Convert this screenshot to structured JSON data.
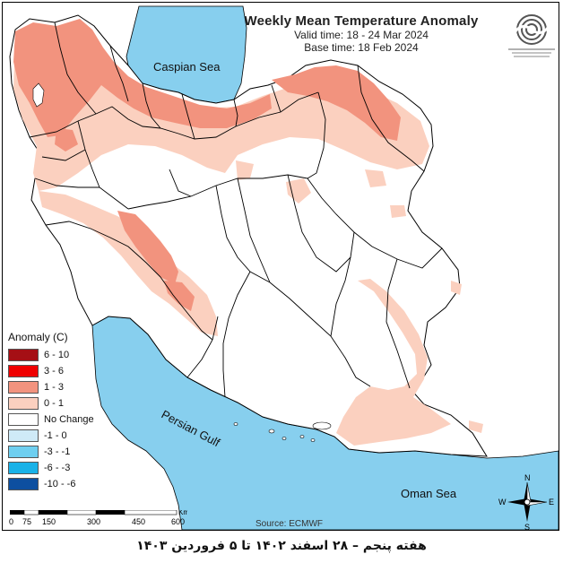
{
  "title": "Weekly Mean Temperature Anomaly",
  "valid_time": "Valid time: 18 - 24 Mar 2024",
  "base_time": "Base time: 18 Feb 2024",
  "labels": {
    "caspian": "Caspian Sea",
    "gulf": "Persian Gulf",
    "oman": "Oman Sea"
  },
  "legend": {
    "title": "Anomaly (C)",
    "items": [
      {
        "label": "6 - 10",
        "color": "#a50f15"
      },
      {
        "label": "3 - 6",
        "color": "#ef0000"
      },
      {
        "label": "1 - 3",
        "color": "#f2937e"
      },
      {
        "label": "0 - 1",
        "color": "#fbd0bf"
      },
      {
        "label": "No Change",
        "color": "#ffffff"
      },
      {
        "label": "-1 - 0",
        "color": "#cfeaf7"
      },
      {
        "label": "-3 - -1",
        "color": "#6ecff0"
      },
      {
        "label": "-6 - -3",
        "color": "#19b2e8"
      },
      {
        "label": "-10 - -6",
        "color": "#0d4fa0"
      }
    ]
  },
  "scale": {
    "ticks": [
      "0",
      "75",
      "150",
      "300",
      "450",
      "600"
    ],
    "unit": "Km"
  },
  "compass": {
    "n": "N",
    "s": "S",
    "e": "E",
    "w": "W"
  },
  "source": "Source: ECMWF",
  "footer": "هفته پنجم – ۲۸ اسفند ۱۴۰۲ تا ۵ فروردین ۱۴۰۳",
  "colors": {
    "water": "#87cfee",
    "warm_light": "#fbd0bf",
    "warm_mid": "#f2937e",
    "boundary": "#000000"
  }
}
